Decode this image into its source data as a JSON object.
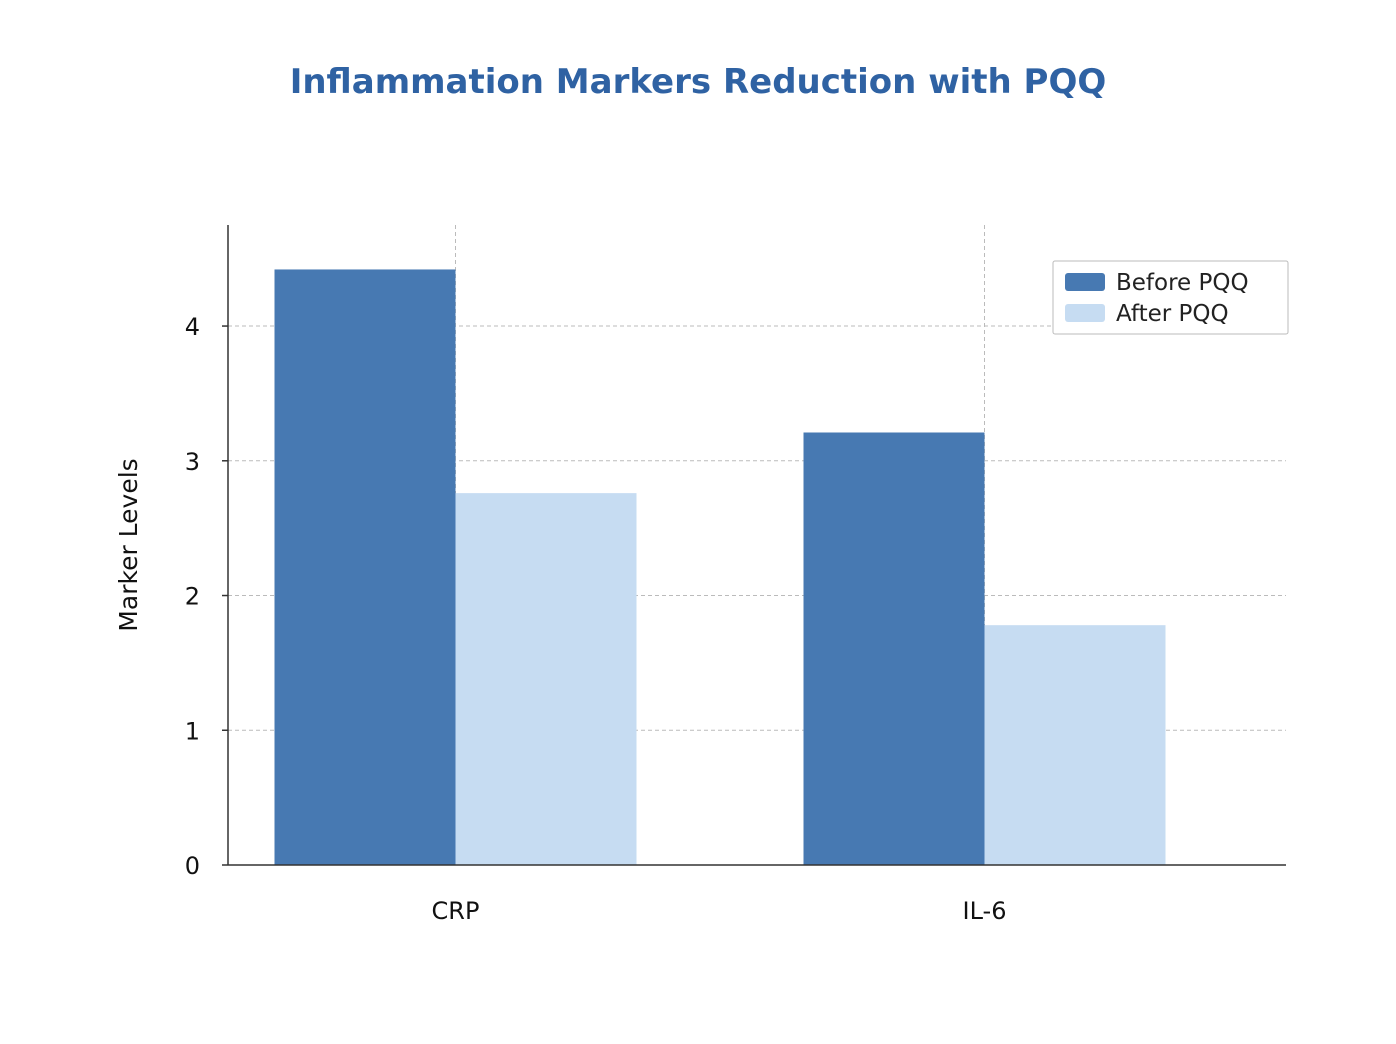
{
  "chart_data": {
    "type": "bar",
    "title": "Inflammation Markers Reduction with PQQ",
    "xlabel": "",
    "ylabel": "Marker Levels",
    "categories": [
      "CRP",
      "IL-6"
    ],
    "series": [
      {
        "name": "Before PQQ",
        "values": [
          4.42,
          3.21
        ],
        "color": "#4779b2"
      },
      {
        "name": "After PQQ",
        "values": [
          2.76,
          1.78
        ],
        "color": "#c6dcf2"
      }
    ],
    "ylim": [
      0,
      4.75
    ],
    "yticks": [
      "0",
      "1",
      "2",
      "3",
      "4"
    ],
    "grid": true,
    "legend_position": "top-right"
  },
  "colors": {
    "title": "#2f62a3",
    "grid": "#bbbbbb",
    "axis": "#333333"
  }
}
